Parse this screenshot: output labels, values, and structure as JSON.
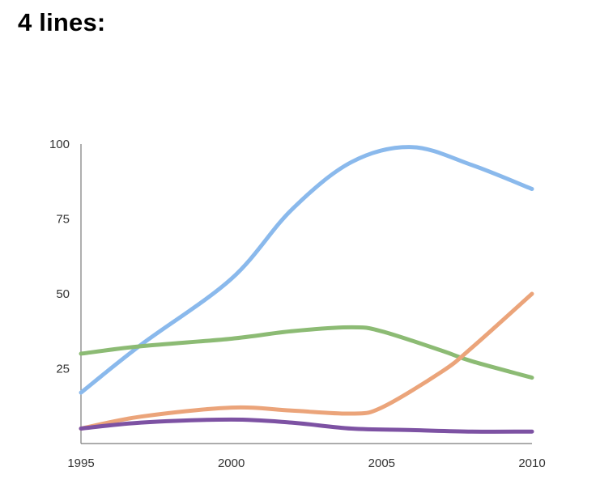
{
  "slide": {
    "title": "4 lines:"
  },
  "chart_data": {
    "type": "line",
    "title": "",
    "xlabel": "",
    "ylabel": "",
    "x": [
      1995,
      2000,
      2005,
      2010
    ],
    "x_ticks": [
      "1995",
      "2000",
      "2005",
      "2010"
    ],
    "y_ticks": [
      "25",
      "50",
      "75",
      "100"
    ],
    "xlim": [
      1995,
      2010
    ],
    "ylim": [
      0,
      100
    ],
    "grid": false,
    "legend": "none",
    "series": [
      {
        "color": "#8ab9ec",
        "points": [
          [
            1995,
            17
          ],
          [
            1997,
            33
          ],
          [
            2000,
            55
          ],
          [
            2002,
            78
          ],
          [
            2004,
            94
          ],
          [
            2006,
            99
          ],
          [
            2008,
            93
          ],
          [
            2010,
            85
          ]
        ]
      },
      {
        "color": "#8cbb74",
        "points": [
          [
            1995,
            30
          ],
          [
            1997,
            32.5
          ],
          [
            2000,
            35
          ],
          [
            2002,
            37.5
          ],
          [
            2004,
            38.8
          ],
          [
            2005,
            37.5
          ],
          [
            2007,
            31
          ],
          [
            2008,
            27.5
          ],
          [
            2010,
            22
          ]
        ]
      },
      {
        "color": "#eba47a",
        "points": [
          [
            1995,
            5
          ],
          [
            1997,
            9
          ],
          [
            2000,
            12
          ],
          [
            2002,
            11
          ],
          [
            2004,
            10
          ],
          [
            2005,
            12
          ],
          [
            2007,
            24
          ],
          [
            2008,
            32
          ],
          [
            2010,
            50
          ]
        ]
      },
      {
        "color": "#7d52a3",
        "points": [
          [
            1995,
            5
          ],
          [
            1997,
            7
          ],
          [
            2000,
            8
          ],
          [
            2002,
            7
          ],
          [
            2004,
            5
          ],
          [
            2006,
            4.5
          ],
          [
            2008,
            4
          ],
          [
            2010,
            4
          ]
        ]
      }
    ]
  }
}
